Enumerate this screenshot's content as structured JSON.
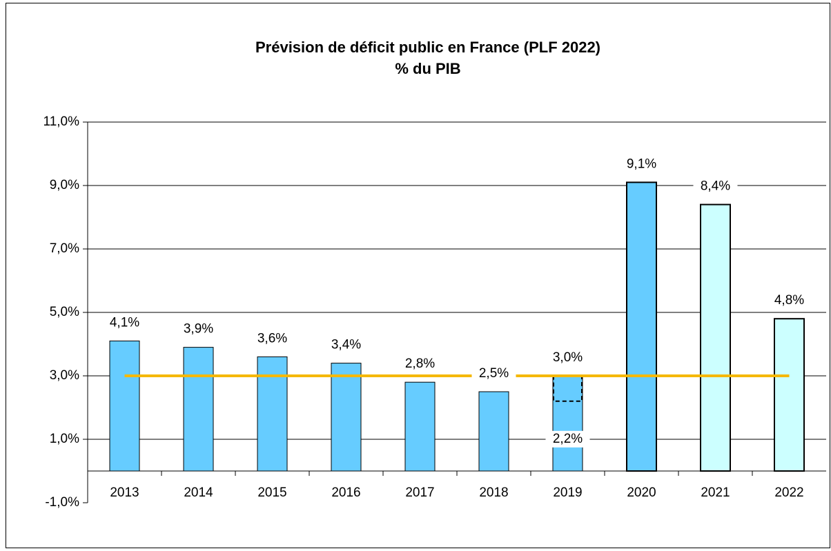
{
  "chart_data": {
    "type": "bar",
    "title": "Prévision de déficit public en France (PLF 2022)",
    "subtitle": "% du PIB",
    "categories": [
      "2013",
      "2014",
      "2015",
      "2016",
      "2017",
      "2018",
      "2019",
      "2020",
      "2021",
      "2022"
    ],
    "values": [
      4.1,
      3.9,
      3.6,
      3.4,
      2.8,
      2.5,
      3.0,
      9.1,
      8.4,
      4.8
    ],
    "value_labels": [
      "4,1%",
      "3,9%",
      "3,6%",
      "3,4%",
      "2,8%",
      "2,5%",
      "3,0%",
      "9,1%",
      "8,4%",
      "4,8%"
    ],
    "colors": [
      "#66ccff",
      "#66ccff",
      "#66ccff",
      "#66ccff",
      "#66ccff",
      "#66ccff",
      "#66ccff",
      "#66ccff",
      "#ccffff",
      "#ccffff"
    ],
    "secondary_values": [
      null,
      null,
      null,
      null,
      null,
      null,
      2.2,
      null,
      null,
      null
    ],
    "secondary_value_labels": [
      null,
      null,
      null,
      null,
      null,
      null,
      "2,2%",
      null,
      null,
      null
    ],
    "reference_line": {
      "value": 3.0,
      "color": "#f5b800"
    },
    "ylim": [
      -1,
      11
    ],
    "yticks": [
      {
        "value": -1,
        "label": "-1,0%"
      },
      {
        "value": 1,
        "label": "1,0%"
      },
      {
        "value": 3,
        "label": "3,0%"
      },
      {
        "value": 5,
        "label": "5,0%"
      },
      {
        "value": 7,
        "label": "7,0%"
      },
      {
        "value": 9,
        "label": "9,0%"
      },
      {
        "value": 11,
        "label": "11,0%"
      }
    ],
    "grid": true
  }
}
